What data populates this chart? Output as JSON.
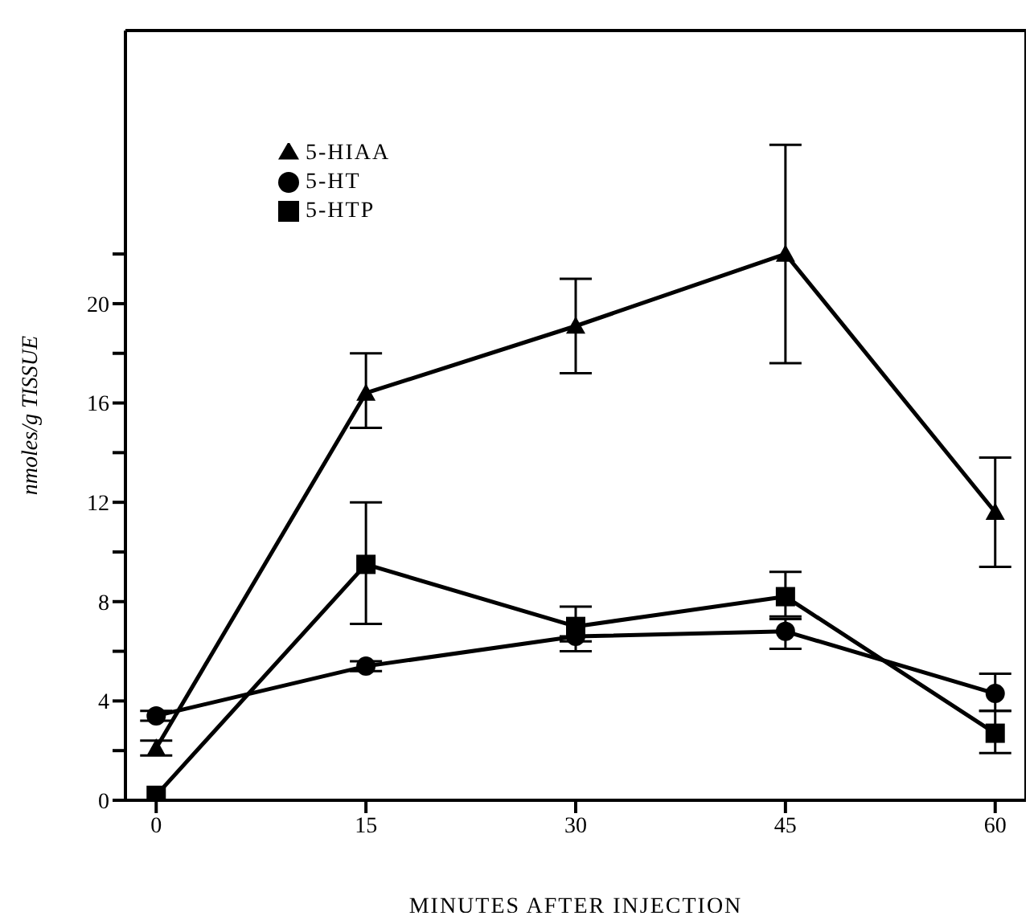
{
  "chart_data": {
    "type": "line",
    "xlabel": "MINUTES AFTER INJECTION",
    "ylabel": "nmoles/g TISSUE",
    "x": [
      0,
      15,
      30,
      45,
      60
    ],
    "series": [
      {
        "name": "5-HIAA",
        "color": "#000000",
        "marker": "triangle",
        "values": [
          2.1,
          16.4,
          19.1,
          22.0,
          11.6
        ],
        "errors": [
          [
            1.8,
            2.4
          ],
          [
            15.0,
            18.0
          ],
          [
            17.2,
            21.0
          ],
          [
            17.6,
            26.4
          ],
          [
            9.4,
            13.8
          ]
        ]
      },
      {
        "name": "5-HTP",
        "color": "#000000",
        "marker": "square",
        "values": [
          0.2,
          9.5,
          7.0,
          8.2,
          2.7
        ],
        "errors": [
          null,
          [
            7.1,
            12.0
          ],
          [
            6.4,
            7.8
          ],
          [
            7.4,
            9.2
          ],
          [
            1.9,
            3.6
          ]
        ]
      },
      {
        "name": "5-HT",
        "color": "#000000",
        "marker": "circle",
        "values": [
          3.4,
          5.4,
          6.6,
          6.8,
          4.3
        ],
        "errors": [
          [
            3.2,
            3.6
          ],
          [
            5.2,
            5.6
          ],
          [
            6.0,
            6.6
          ],
          [
            6.1,
            7.3
          ],
          [
            3.6,
            5.1
          ]
        ]
      }
    ],
    "xlim": [
      -2.2,
      62.2
    ],
    "xticks": [
      0,
      15,
      30,
      45,
      60
    ],
    "ylim": [
      0,
      31
    ],
    "yticks": [
      0,
      {
        "value": 2,
        "label": null
      },
      4,
      {
        "value": 6,
        "label": null
      },
      8,
      {
        "value": 10,
        "label": null
      },
      12,
      {
        "value": 14,
        "label": null
      },
      16,
      {
        "value": 18,
        "label": null
      },
      20,
      {
        "value": 22,
        "label": null
      }
    ],
    "legend": "top left",
    "grid": false,
    "line_style": "solid"
  }
}
